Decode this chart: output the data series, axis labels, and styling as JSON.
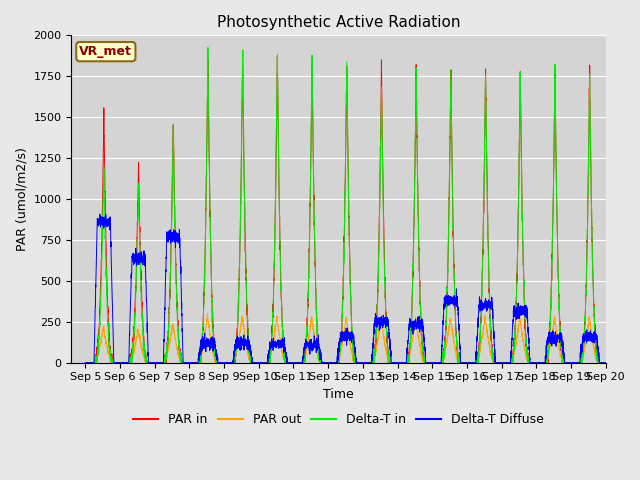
{
  "title": "Photosynthetic Active Radiation",
  "ylabel": "PAR (umol/m2/s)",
  "xlabel": "Time",
  "annotation": "VR_met",
  "ylim": [
    0,
    2000
  ],
  "xlim": [
    4.6,
    20.0
  ],
  "fig_facecolor": "#e8e8e8",
  "ax_facecolor": "#d4d4d4",
  "grid_color": "#ffffff",
  "colors": {
    "par_in": "#ff0000",
    "par_out": "#ffa500",
    "delta_t_in": "#00ee00",
    "delta_t_diff": "#0000ff"
  },
  "linewidth": 0.7,
  "title_fontsize": 11,
  "label_fontsize": 9,
  "tick_fontsize": 8,
  "legend_fontsize": 9,
  "par_in_peaks": [
    1530,
    1220,
    1490,
    1880,
    1870,
    1870,
    1860,
    1840,
    1820,
    1810,
    1800,
    1800,
    1790,
    1780,
    1770
  ],
  "par_out_peaks": [
    220,
    200,
    240,
    290,
    285,
    285,
    280,
    280,
    275,
    275,
    275,
    275,
    275,
    275,
    275
  ],
  "delta_t_in_peaks": [
    1220,
    1100,
    1450,
    1900,
    1900,
    1880,
    1870,
    1855,
    1700,
    1800,
    1790,
    1780,
    1780,
    1775,
    1770
  ],
  "delta_t_diff_peaks": [
    860,
    640,
    770,
    120,
    120,
    115,
    110,
    155,
    250,
    235,
    385,
    345,
    315,
    155,
    155
  ],
  "n_days": 15,
  "pts_per_day": 288
}
